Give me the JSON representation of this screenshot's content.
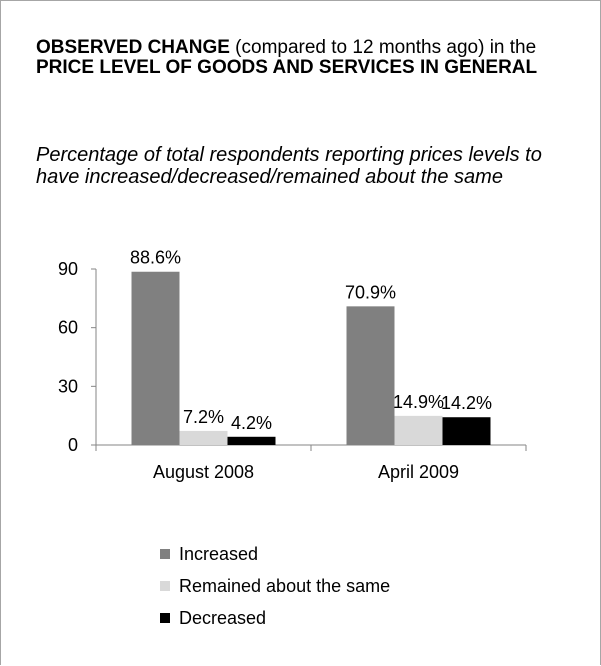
{
  "title": {
    "bold1": "OBSERVED CHANGE",
    "normal1": " (compared to 12 months ago) in the ",
    "bold2": "PRICE LEVEL OF GOODS AND SERVICES IN GENERAL"
  },
  "subtitle": "Percentage of total respondents reporting prices levels to have increased/decreased/remained about the same",
  "colors": {
    "increased": "#808080",
    "remained": "#d9d9d9",
    "decreased": "#000000",
    "axis": "#868686"
  },
  "chart_data": {
    "type": "bar",
    "categories": [
      "August 2008",
      "April 2009"
    ],
    "series": [
      {
        "name": "Increased",
        "values": [
          88.6,
          70.9
        ],
        "labels": [
          "88.6%",
          "70.9%"
        ]
      },
      {
        "name": "Remained about the same",
        "values": [
          7.2,
          14.9
        ],
        "labels": [
          "7.2%",
          "14.9%"
        ]
      },
      {
        "name": "Decreased",
        "values": [
          4.2,
          14.2
        ],
        "labels": [
          "4.2%",
          "14.2%"
        ]
      }
    ],
    "ylim": [
      0,
      90
    ],
    "yticks": [
      0,
      30,
      60,
      90
    ],
    "ytick_labels": [
      "0",
      "30",
      "60",
      "90"
    ],
    "grid": false,
    "legend_position": "bottom"
  }
}
